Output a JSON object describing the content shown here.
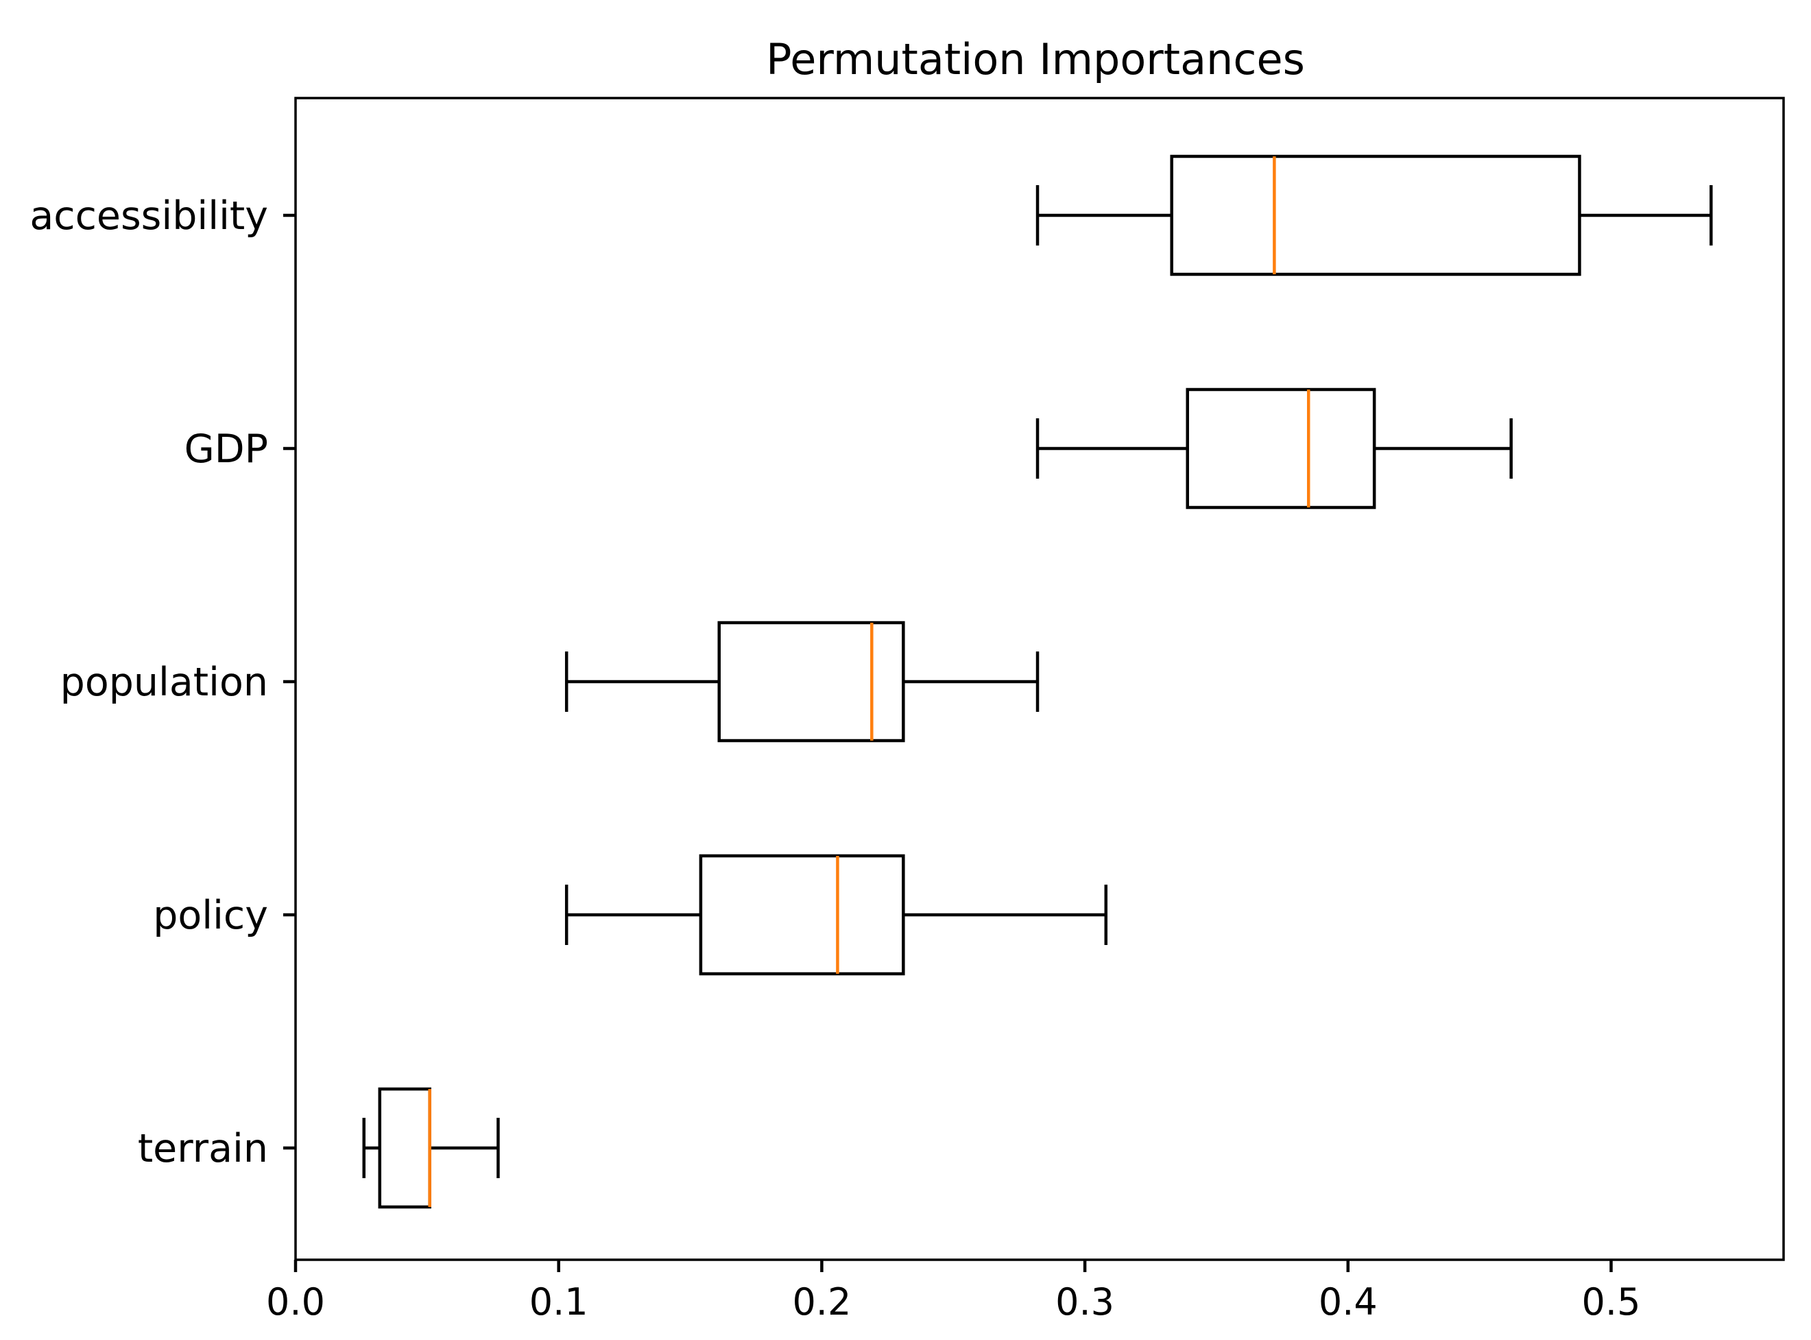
{
  "chart_data": {
    "type": "boxplot",
    "orientation": "horizontal",
    "title": "Permutation Importances",
    "xlabel": "",
    "ylabel": "",
    "xlim": [
      0.0,
      0.565
    ],
    "x_ticks": [
      0.0,
      0.1,
      0.2,
      0.3,
      0.4,
      0.5
    ],
    "x_tick_labels": [
      "0.0",
      "0.1",
      "0.2",
      "0.3",
      "0.4",
      "0.5"
    ],
    "grid": false,
    "categories": [
      "accessibility",
      "GDP",
      "population",
      "policy",
      "terrain"
    ],
    "boxes": [
      {
        "name": "accessibility",
        "whisker_low": 0.282,
        "q1": 0.333,
        "median": 0.372,
        "q3": 0.488,
        "whisker_high": 0.538
      },
      {
        "name": "GDP",
        "whisker_low": 0.282,
        "q1": 0.339,
        "median": 0.385,
        "q3": 0.41,
        "whisker_high": 0.462
      },
      {
        "name": "population",
        "whisker_low": 0.103,
        "q1": 0.161,
        "median": 0.219,
        "q3": 0.231,
        "whisker_high": 0.282
      },
      {
        "name": "policy",
        "whisker_low": 0.103,
        "q1": 0.154,
        "median": 0.206,
        "q3": 0.231,
        "whisker_high": 0.308
      },
      {
        "name": "terrain",
        "whisker_low": 0.026,
        "q1": 0.032,
        "median": 0.051,
        "q3": 0.051,
        "whisker_high": 0.077
      }
    ],
    "colors": {
      "box": "#000000",
      "median": "#ff7f0e",
      "background": "#ffffff"
    }
  }
}
